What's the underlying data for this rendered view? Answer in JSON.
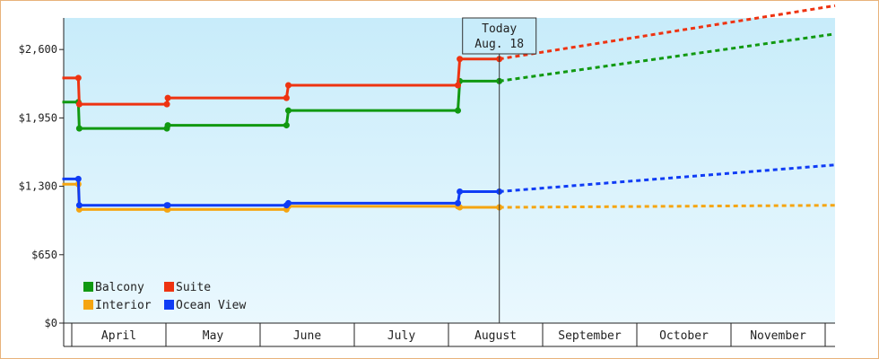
{
  "chart_data": {
    "type": "line",
    "title": "",
    "xlabel": "",
    "ylabel": "",
    "ylim": [
      0,
      2900
    ],
    "yticks": [
      0,
      650,
      1300,
      1950,
      2600
    ],
    "ytick_labels": [
      "$0",
      "$650",
      "$1,300",
      "$1,950",
      "$2,600"
    ],
    "months": [
      "April",
      "May",
      "June",
      "July",
      "August",
      "September",
      "October",
      "November"
    ],
    "today": {
      "line1": "Today",
      "line2": "Aug. 18",
      "x": 4.54
    },
    "legend_position": "bottom-left",
    "series": [
      {
        "name": "Balcony",
        "color": "#119911",
        "points": [
          [
            -0.1,
            2100
          ],
          [
            0.07,
            2100
          ],
          [
            0.08,
            1850
          ],
          [
            1.01,
            1850
          ],
          [
            1.02,
            1880
          ],
          [
            2.28,
            1880
          ],
          [
            2.3,
            2020
          ],
          [
            4.1,
            2020
          ],
          [
            4.12,
            2300
          ],
          [
            4.54,
            2300
          ]
        ],
        "projection": [
          [
            4.54,
            2300
          ],
          [
            8.2,
            2760
          ]
        ]
      },
      {
        "name": "Suite",
        "color": "#ee3311",
        "points": [
          [
            -0.1,
            2330
          ],
          [
            0.07,
            2330
          ],
          [
            0.08,
            2080
          ],
          [
            1.01,
            2080
          ],
          [
            1.02,
            2140
          ],
          [
            2.28,
            2140
          ],
          [
            2.3,
            2260
          ],
          [
            4.1,
            2260
          ],
          [
            4.12,
            2510
          ],
          [
            4.54,
            2510
          ]
        ],
        "projection": [
          [
            4.54,
            2510
          ],
          [
            8.2,
            3030
          ]
        ]
      },
      {
        "name": "Interior",
        "color": "#f5a511",
        "points": [
          [
            -0.1,
            1320
          ],
          [
            0.07,
            1320
          ],
          [
            0.08,
            1080
          ],
          [
            1.01,
            1080
          ],
          [
            1.02,
            1080
          ],
          [
            2.28,
            1080
          ],
          [
            2.3,
            1110
          ],
          [
            4.1,
            1110
          ],
          [
            4.12,
            1100
          ],
          [
            4.54,
            1100
          ]
        ],
        "projection": [
          [
            4.54,
            1100
          ],
          [
            8.2,
            1120
          ]
        ]
      },
      {
        "name": "Ocean View",
        "color": "#0f3cf5",
        "points": [
          [
            -0.1,
            1370
          ],
          [
            0.07,
            1370
          ],
          [
            0.08,
            1120
          ],
          [
            1.01,
            1120
          ],
          [
            1.02,
            1120
          ],
          [
            2.28,
            1120
          ],
          [
            2.3,
            1140
          ],
          [
            4.1,
            1140
          ],
          [
            4.12,
            1250
          ],
          [
            4.54,
            1250
          ]
        ],
        "projection": [
          [
            4.54,
            1250
          ],
          [
            8.2,
            1510
          ]
        ]
      }
    ]
  }
}
